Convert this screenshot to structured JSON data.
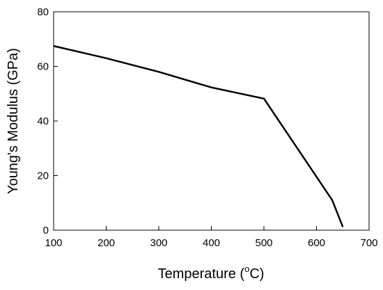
{
  "chart_data": {
    "type": "line",
    "xlabel_parts": [
      "Temperature (",
      "o",
      "C)"
    ],
    "ylabel": "Young's Modulus (GPa)",
    "xlim": [
      100,
      700
    ],
    "ylim": [
      0,
      80
    ],
    "x_ticks": [
      100,
      200,
      300,
      400,
      500,
      600,
      700
    ],
    "y_ticks": [
      0,
      20,
      40,
      60,
      80
    ],
    "grid": false,
    "series": [
      {
        "x": [
          100,
          200,
          300,
          400,
          500,
          630,
          650
        ],
        "y": [
          67.5,
          63,
          58,
          52.3,
          48.2,
          11,
          1.2
        ],
        "color": "#000000"
      }
    ]
  }
}
